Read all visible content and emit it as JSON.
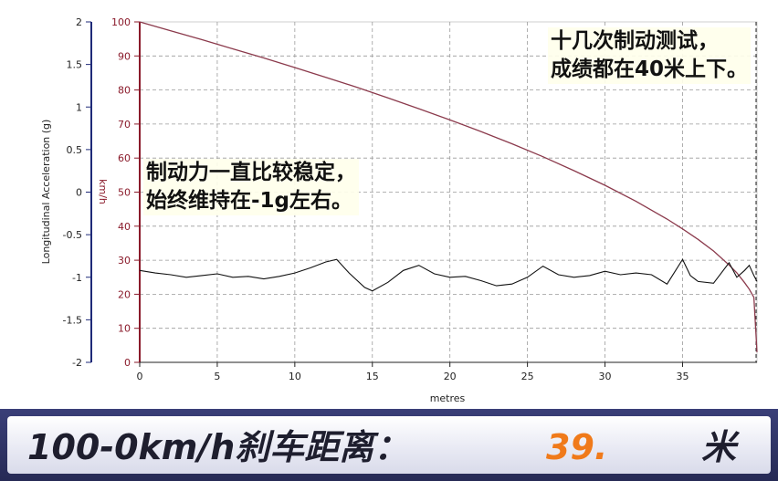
{
  "chart_data": {
    "type": "line",
    "x": [
      0,
      1,
      2,
      3,
      4,
      5,
      6,
      7,
      8,
      9,
      10,
      11,
      12,
      12.7,
      13.5,
      14.5,
      15,
      16,
      17,
      18,
      19,
      20,
      21,
      22,
      23,
      24,
      25,
      26,
      27,
      28,
      29,
      30,
      31,
      32,
      33,
      34,
      35,
      35.5,
      36,
      37,
      38,
      38.5,
      39,
      39.3,
      39.6,
      39.8
    ],
    "xlabel": "metres",
    "xlim": [
      0,
      39.8
    ],
    "xticks": [
      "0",
      "5",
      "10",
      "15",
      "20",
      "25",
      "30",
      "35"
    ],
    "left_axis": {
      "label": "Longitudinal Acceleration (g)",
      "ylim": [
        -2,
        2
      ],
      "ticks": [
        "2",
        "1.5",
        "1",
        "0.5",
        "0",
        "-0.5",
        "-1",
        "-1.5",
        "-2"
      ]
    },
    "right_axis": {
      "label": "km/h",
      "ylim": [
        0,
        100
      ],
      "ticks": [
        "100",
        "90",
        "80",
        "70",
        "60",
        "50",
        "40",
        "30",
        "20",
        "10",
        "0"
      ]
    },
    "series": [
      {
        "axis": "km/h",
        "color": "#8b3a4c",
        "x": [
          0,
          2,
          4,
          6,
          8,
          10,
          12,
          14,
          16,
          18,
          20,
          22,
          24,
          26,
          28,
          30,
          32,
          34,
          35,
          36,
          37,
          38,
          38.5,
          39,
          39.3,
          39.6,
          39.8
        ],
        "values": [
          100,
          97.4,
          94.8,
          92.1,
          89.4,
          86.6,
          83.7,
          80.8,
          77.7,
          74.5,
          71.2,
          67.8,
          64.2,
          60.4,
          56.3,
          52.0,
          47.3,
          42.1,
          39.2,
          36.1,
          32.7,
          28.6,
          26.3,
          23.4,
          21.5,
          19.1,
          3
        ]
      },
      {
        "axis": "g",
        "color": "#111111",
        "x": [
          0,
          1,
          2,
          3,
          4,
          5,
          6,
          7,
          8,
          9,
          10,
          11,
          12,
          12.7,
          13.5,
          14.5,
          15,
          16,
          17,
          18,
          19,
          20,
          21,
          22,
          23,
          24,
          25,
          26,
          27,
          28,
          29,
          30,
          31,
          32,
          33,
          34,
          35,
          35.5,
          36,
          37,
          38,
          38.5,
          39,
          39.3,
          39.6,
          39.8
        ],
        "values": [
          -0.92,
          -0.95,
          -0.97,
          -1.0,
          -0.98,
          -0.96,
          -1.0,
          -0.99,
          -1.02,
          -0.99,
          -0.95,
          -0.89,
          -0.82,
          -0.79,
          -0.95,
          -1.12,
          -1.16,
          -1.06,
          -0.92,
          -0.86,
          -0.96,
          -1.0,
          -0.99,
          -1.04,
          -1.1,
          -1.08,
          -1.0,
          -0.87,
          -0.97,
          -1.0,
          -0.98,
          -0.93,
          -0.97,
          -0.95,
          -0.97,
          -1.08,
          -0.79,
          -0.98,
          -1.05,
          -1.07,
          -0.83,
          -1.0,
          -0.92,
          -0.86,
          -0.98,
          -1.05
        ]
      }
    ],
    "grid": true
  },
  "annotations": {
    "top_line1": "十几次制动测试，",
    "top_line2": "成绩都在40米上下。",
    "left_line1": "制动力一直比较稳定，",
    "left_line2": "始终维持在-1g左右。"
  },
  "banner": {
    "title": "100-0km/h刹车距离：",
    "value": "39.",
    "unit": "米",
    "accent_color": "#f07a1a",
    "frame_color": "#2e3266"
  }
}
